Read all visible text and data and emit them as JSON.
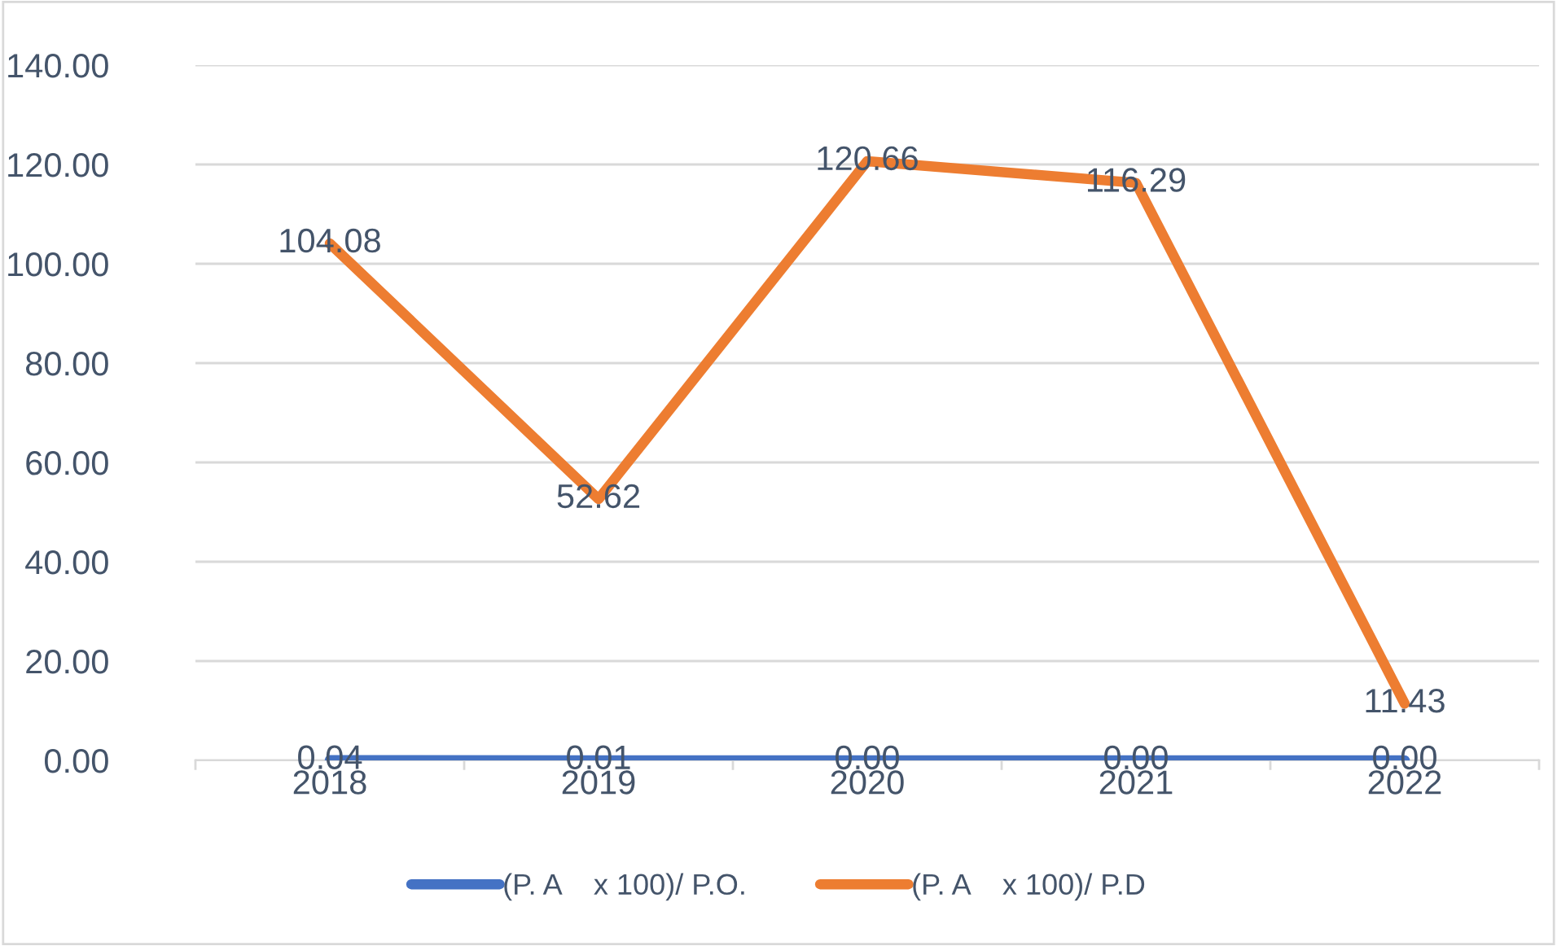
{
  "chart_data": {
    "type": "line",
    "categories": [
      "2018",
      "2019",
      "2020",
      "2021",
      "2022"
    ],
    "series": [
      {
        "name": "(P. A    x 100)/ P.O.",
        "color": "#4472c4",
        "values": [
          0.04,
          0.01,
          0.0,
          0.0,
          0.0
        ],
        "value_labels": [
          "0.04",
          "0.01",
          "0.00",
          "0.00",
          "0.00"
        ]
      },
      {
        "name": "(P. A    x 100)/ P.D",
        "color": "#ed7d31",
        "values": [
          104.08,
          52.62,
          120.66,
          116.29,
          11.43
        ],
        "value_labels": [
          "104.08",
          "52.62",
          "120.66",
          "116.29",
          "11.43"
        ]
      }
    ],
    "ylim": [
      0,
      140
    ],
    "yticks": [
      {
        "value": 0,
        "label": "0.00"
      },
      {
        "value": 20,
        "label": "20.00"
      },
      {
        "value": 40,
        "label": "40.00"
      },
      {
        "value": 60,
        "label": "60.00"
      },
      {
        "value": 80,
        "label": "80.00"
      },
      {
        "value": 100,
        "label": "100.00"
      },
      {
        "value": 120,
        "label": "120.00"
      },
      {
        "value": 140,
        "label": "140.00"
      }
    ],
    "grid": "y",
    "legend": "bottom",
    "marker": "none",
    "line_style": "solid"
  }
}
